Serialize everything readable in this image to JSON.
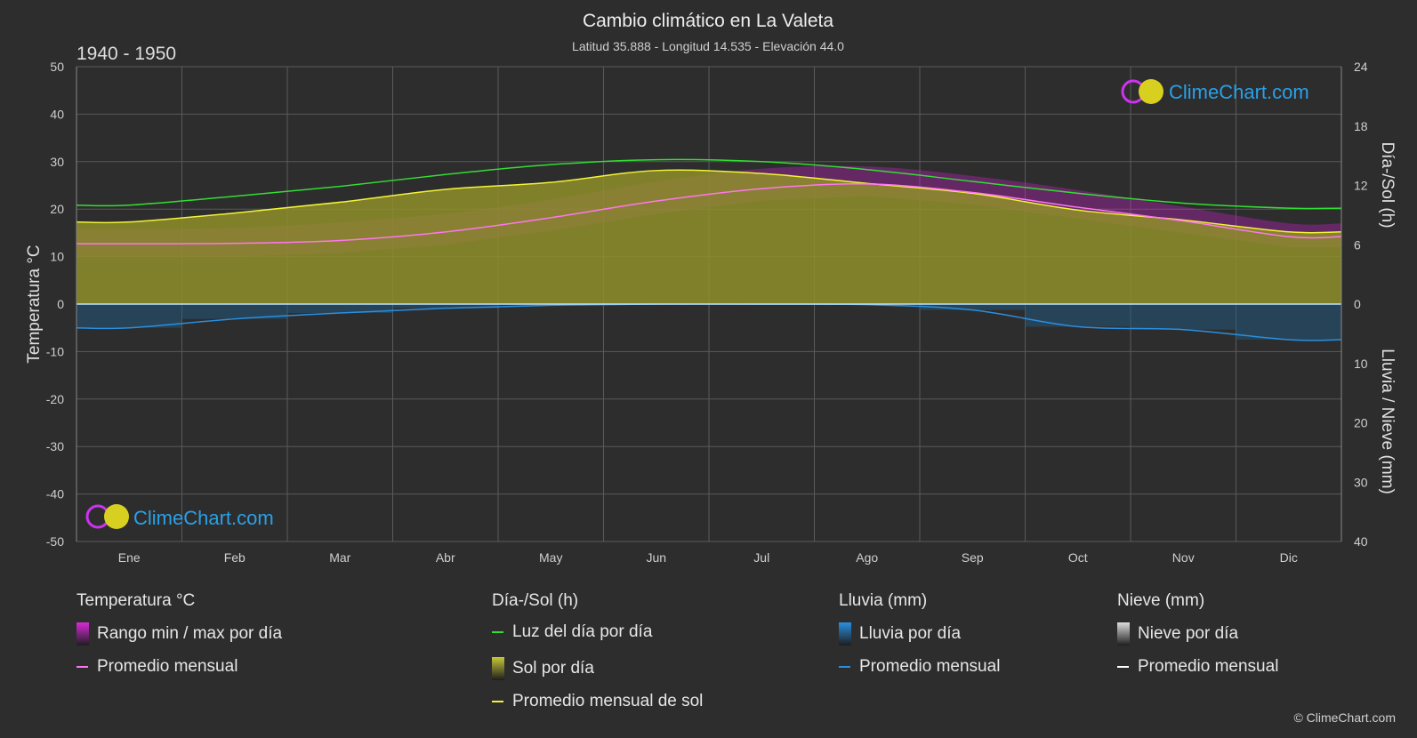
{
  "header": {
    "title": "Cambio climático en La Valeta",
    "subtitle": "Latitud 35.888 - Longitud 14.535 - Elevación 44.0",
    "period": "1940 - 1950"
  },
  "logo_text": "ClimeChart.com",
  "copyright": "© ClimeChart.com",
  "colors": {
    "background": "#2d2d2d",
    "grid": "#5a5a5a",
    "daylight": "#33dd33",
    "sunshine_line": "#f2f23a",
    "sunshine_fill": "#8f8f2a",
    "temp_line": "#ff77ee",
    "temp_range": "#cc22cc",
    "rain_line": "#2a8fe0",
    "rain_bar": "#1f5f8f",
    "snow_line": "#ffffff"
  },
  "chart_data": {
    "type": "line",
    "title": "Cambio climático en La Valeta",
    "categories": [
      "Ene",
      "Feb",
      "Mar",
      "Abr",
      "May",
      "Jun",
      "Jul",
      "Ago",
      "Sep",
      "Oct",
      "Nov",
      "Dic"
    ],
    "axes": {
      "left": {
        "label": "Temperatura °C",
        "min": -50,
        "max": 50,
        "ticks": [
          50,
          40,
          30,
          20,
          10,
          0,
          -10,
          -20,
          -30,
          -40,
          -50
        ]
      },
      "right_top": {
        "label": "Día-/Sol (h)",
        "min": 0,
        "max": 24,
        "ticks": [
          24,
          18,
          12,
          6,
          0
        ]
      },
      "right_bottom": {
        "label": "Lluvia / Nieve (mm)",
        "min": 0,
        "max": 40,
        "ticks": [
          0,
          10,
          20,
          30,
          40
        ]
      }
    },
    "grid": true,
    "series": [
      {
        "name": "Luz del día por día",
        "axis": "right_top",
        "values": [
          10.0,
          10.9,
          11.9,
          13.1,
          14.1,
          14.6,
          14.4,
          13.6,
          12.4,
          11.2,
          10.2,
          9.7
        ]
      },
      {
        "name": "Promedio mensual de sol",
        "axis": "right_top",
        "values": [
          8.3,
          9.2,
          10.3,
          11.6,
          12.3,
          13.5,
          13.2,
          12.2,
          11.2,
          9.5,
          8.5,
          7.3
        ]
      },
      {
        "name": "Promedio mensual",
        "axis": "left",
        "group": "temperature",
        "values": [
          12.7,
          12.8,
          13.4,
          15.2,
          18.2,
          21.7,
          24.3,
          25.3,
          23.5,
          20.4,
          17.5,
          14.2
        ]
      },
      {
        "name": "Promedio mensual",
        "axis": "right_bottom",
        "group": "rain",
        "values": [
          4.0,
          2.5,
          1.5,
          0.7,
          0.2,
          0.0,
          0.0,
          0.1,
          1.0,
          3.8,
          4.3,
          6.0
        ]
      },
      {
        "name": "Promedio mensual",
        "axis": "right_bottom",
        "group": "snow",
        "values": [
          0,
          0,
          0,
          0,
          0,
          0,
          0,
          0,
          0,
          0,
          0,
          0
        ]
      }
    ],
    "temperature_range": {
      "name": "Rango min / max por día",
      "min": [
        10.0,
        10.0,
        10.8,
        12.5,
        15.5,
        19.0,
        21.8,
        22.8,
        21.0,
        18.0,
        15.0,
        12.0
      ],
      "max": [
        15.8,
        16.0,
        17.2,
        19.0,
        22.0,
        25.8,
        28.5,
        29.0,
        27.0,
        24.0,
        20.5,
        17.0
      ]
    }
  },
  "legend": [
    {
      "heading": "Temperatura °C",
      "items": [
        {
          "label": "Rango min / max por día",
          "swatch": "box",
          "color": "#d82ad8"
        },
        {
          "label": "Promedio mensual",
          "swatch": "line",
          "color": "#ff77ee"
        }
      ]
    },
    {
      "heading": "Día-/Sol (h)",
      "items": [
        {
          "label": "Luz del día por día",
          "swatch": "line",
          "color": "#33dd33"
        },
        {
          "label": "Sol por día",
          "swatch": "box",
          "color": "#c8c83a"
        },
        {
          "label": "Promedio mensual de sol",
          "swatch": "line",
          "color": "#f2f23a"
        }
      ]
    },
    {
      "heading": "Lluvia (mm)",
      "items": [
        {
          "label": "Lluvia por día",
          "swatch": "box",
          "color": "#2a8fe0"
        },
        {
          "label": "Promedio mensual",
          "swatch": "line",
          "color": "#2a8fe0"
        }
      ]
    },
    {
      "heading": "Nieve (mm)",
      "items": [
        {
          "label": "Nieve por día",
          "swatch": "box",
          "color": "#dddddd"
        },
        {
          "label": "Promedio mensual",
          "swatch": "line",
          "color": "#ffffff"
        }
      ]
    }
  ]
}
